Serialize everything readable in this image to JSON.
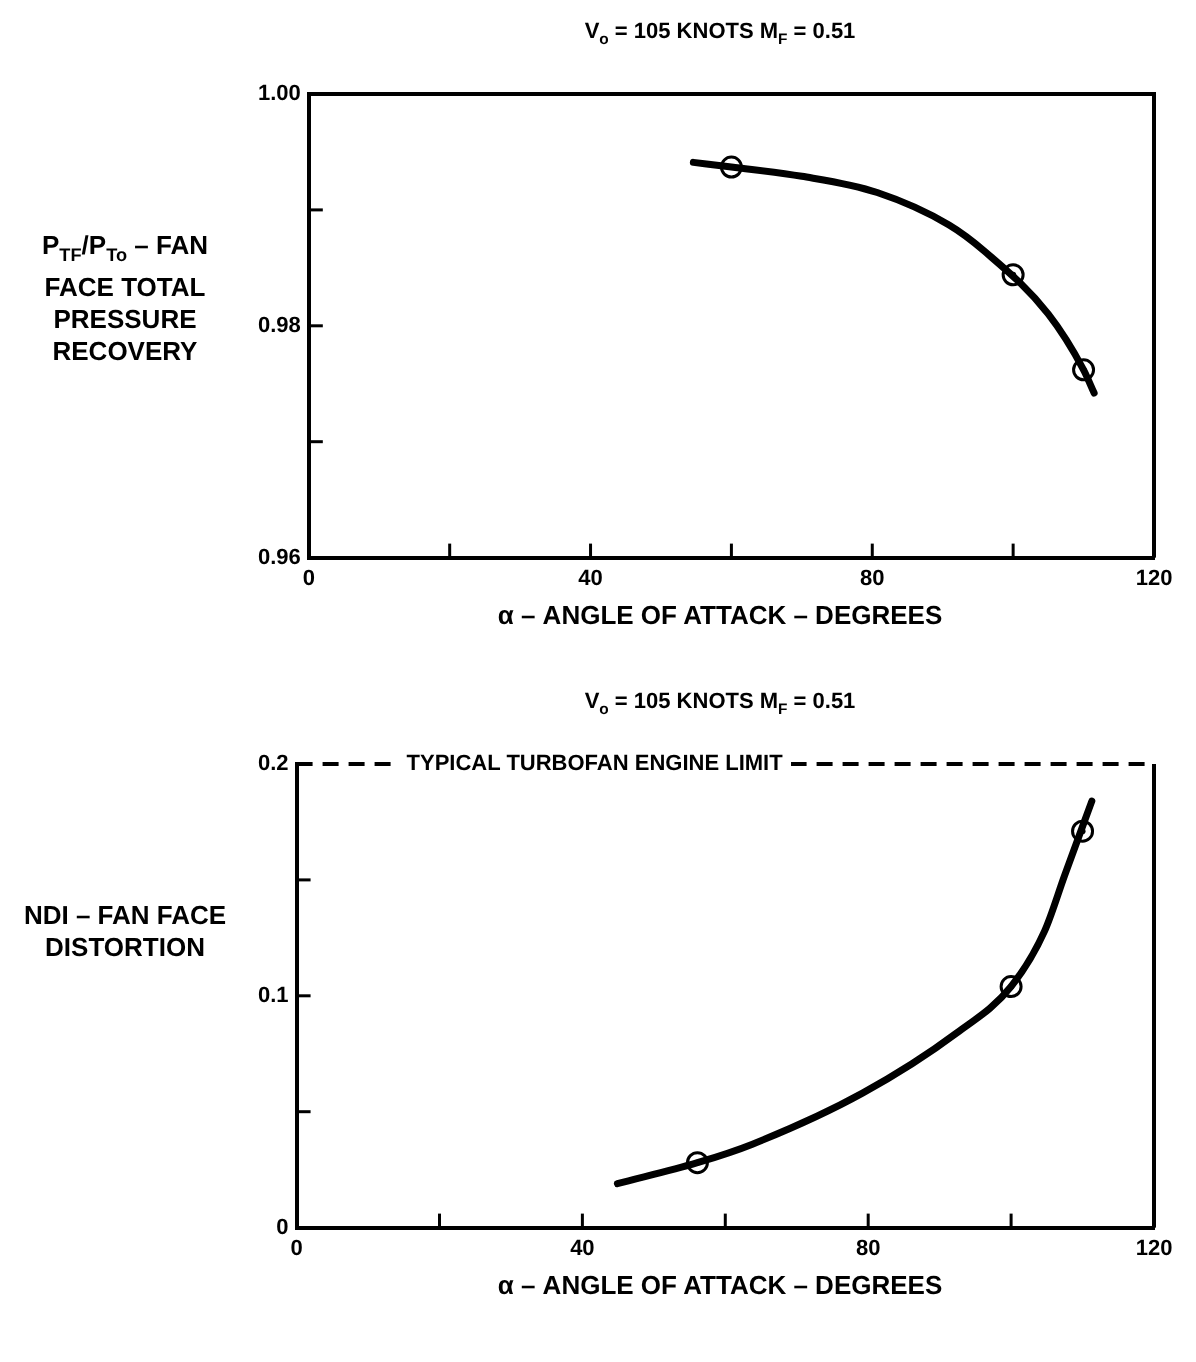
{
  "chart_data": [
    {
      "type": "line",
      "title": "V$_{o}$  = 105 KNOTS    M$_{F}$ = 0.51",
      "xlabel": "α – ANGLE OF ATTACK – DEGREES",
      "ylabel": "P$_{TF}$/P$_{To}$ – FAN FACE TOTAL PRESSURE RECOVERY",
      "xlim": [
        0,
        120
      ],
      "xticks": [
        0,
        {
          "value": 20,
          "label": null
        },
        40,
        {
          "value": 60,
          "label": null
        },
        80,
        {
          "value": 100,
          "label": null
        },
        120
      ],
      "ylim": [
        0.96,
        1.0
      ],
      "yticks": [
        0.96,
        {
          "value": 0.97,
          "label": null
        },
        0.98,
        {
          "value": 0.99,
          "label": null
        },
        {
          "value": 1.0,
          "label": "1.00"
        }
      ],
      "legend": false,
      "series": [
        {
          "type": "line",
          "color": "#000000",
          "marker": "none",
          "line_style": "solid",
          "x": [
            54.6,
            60,
            70,
            80.7,
            90.9,
            96,
            105,
            110,
            111.5
          ],
          "values": [
            0.9941,
            0.9937,
            0.9929,
            0.9915,
            0.9887,
            0.9864,
            0.981,
            0.9762,
            0.9742
          ]
        },
        {
          "type": "scatter",
          "color": "#000000",
          "marker": "circle",
          "x": [
            60,
            100,
            110
          ],
          "values": [
            0.9937,
            0.9844,
            0.9762
          ]
        }
      ]
    },
    {
      "type": "line",
      "title": "V$_{o}$  = 105 KNOTS    M$_{F}$ = 0.51",
      "xlabel": "α – ANGLE OF ATTACK – DEGREES",
      "ylabel": "NDI – FAN FACE DISTORTION",
      "xlim": [
        0,
        120
      ],
      "xticks": [
        0,
        {
          "value": 20,
          "label": null
        },
        40,
        {
          "value": 60,
          "label": null
        },
        80,
        {
          "value": 100,
          "label": null
        },
        120
      ],
      "ylim": [
        0,
        0.2
      ],
      "yticks": [
        0,
        {
          "value": 0.05,
          "label": null
        },
        0.1,
        {
          "value": 0.15,
          "label": null
        },
        0.2
      ],
      "legend": false,
      "ref_lines": [
        {
          "axis": "y",
          "value": 0.2,
          "label": "TYPICAL TURBOFAN ENGINE LIMIT",
          "line_style": "dashed",
          "color": "#000000"
        }
      ],
      "series": [
        {
          "type": "line",
          "color": "#000000",
          "marker": "none",
          "line_style": "solid",
          "x": [
            44.9,
            56.1,
            63.8,
            79.2,
            92.4,
            100,
            104.7,
            107.5,
            111.3
          ],
          "values": [
            0.019,
            0.028,
            0.036,
            0.058,
            0.084,
            0.104,
            0.128,
            0.152,
            0.184
          ]
        },
        {
          "type": "scatter",
          "color": "#000000",
          "marker": "circle",
          "x": [
            56.1,
            100,
            110
          ],
          "values": [
            0.028,
            0.104,
            0.171
          ]
        }
      ]
    }
  ]
}
